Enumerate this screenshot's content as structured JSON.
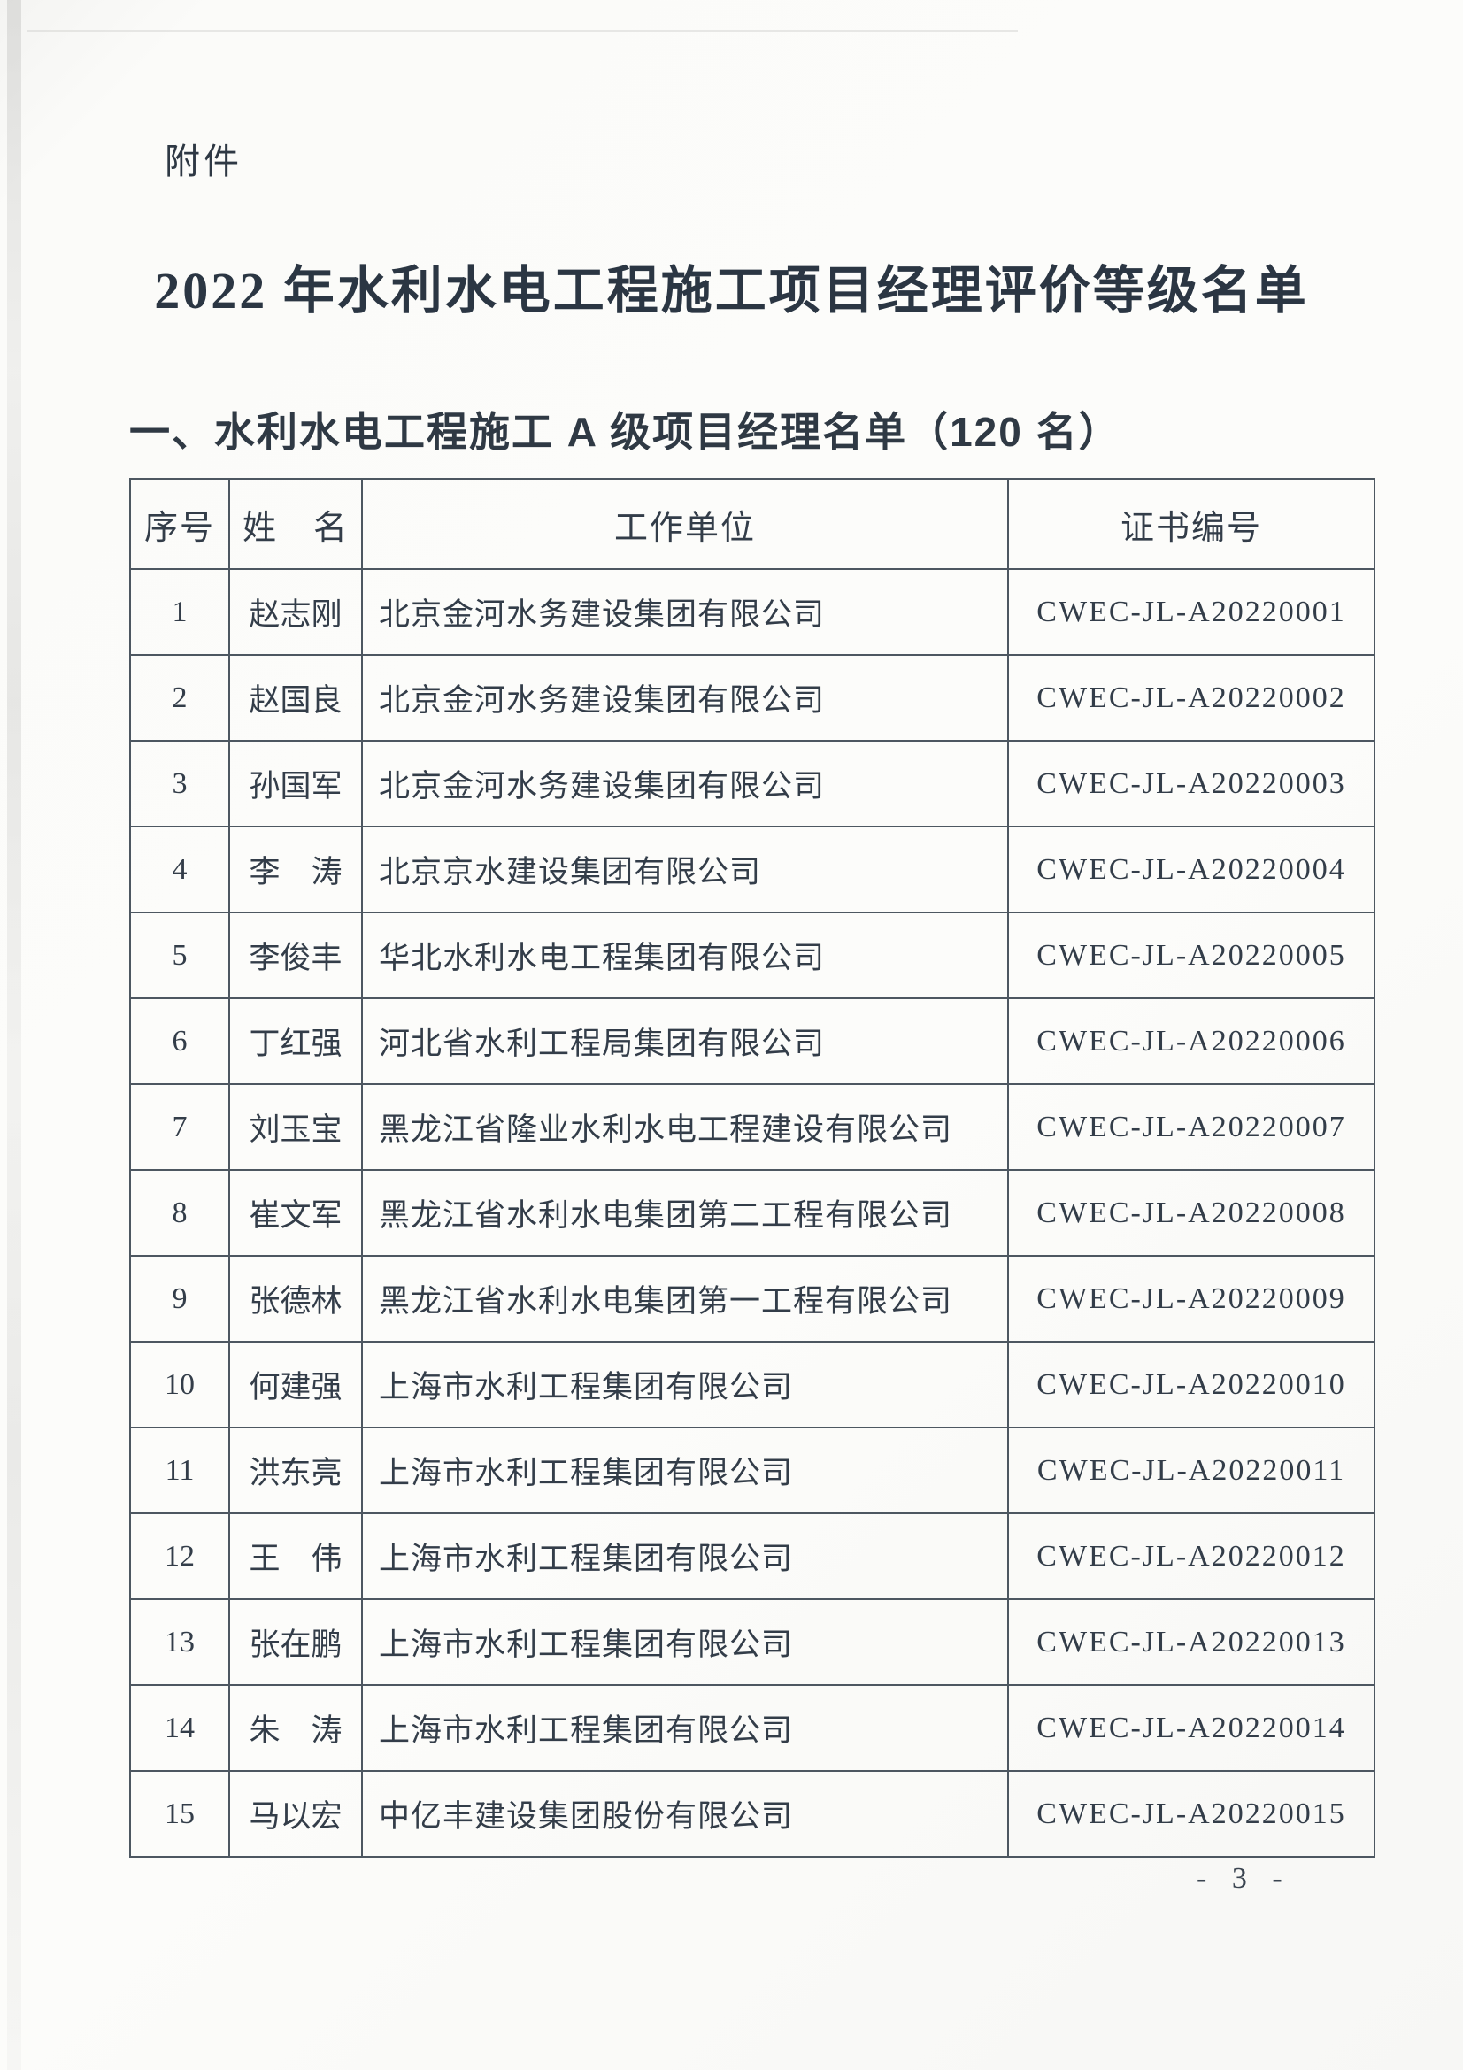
{
  "attachment_label": "附件",
  "title": "2022 年水利水电工程施工项目经理评价等级名单",
  "section_heading": "一、水利水电工程施工 A 级项目经理名单（120 名）",
  "table": {
    "headers": [
      "序号",
      "姓　名",
      "工作单位",
      "证书编号"
    ],
    "rows": [
      {
        "no": "1",
        "name": "赵志刚",
        "unit": "北京金河水务建设集团有限公司",
        "cert": "CWEC-JL-A20220001"
      },
      {
        "no": "2",
        "name": "赵国良",
        "unit": "北京金河水务建设集团有限公司",
        "cert": "CWEC-JL-A20220002"
      },
      {
        "no": "3",
        "name": "孙国军",
        "unit": "北京金河水务建设集团有限公司",
        "cert": "CWEC-JL-A20220003"
      },
      {
        "no": "4",
        "name": "李　涛",
        "unit": "北京京水建设集团有限公司",
        "cert": "CWEC-JL-A20220004"
      },
      {
        "no": "5",
        "name": "李俊丰",
        "unit": "华北水利水电工程集团有限公司",
        "cert": "CWEC-JL-A20220005"
      },
      {
        "no": "6",
        "name": "丁红强",
        "unit": "河北省水利工程局集团有限公司",
        "cert": "CWEC-JL-A20220006"
      },
      {
        "no": "7",
        "name": "刘玉宝",
        "unit": "黑龙江省隆业水利水电工程建设有限公司",
        "cert": "CWEC-JL-A20220007"
      },
      {
        "no": "8",
        "name": "崔文军",
        "unit": "黑龙江省水利水电集团第二工程有限公司",
        "cert": "CWEC-JL-A20220008"
      },
      {
        "no": "9",
        "name": "张德林",
        "unit": "黑龙江省水利水电集团第一工程有限公司",
        "cert": "CWEC-JL-A20220009"
      },
      {
        "no": "10",
        "name": "何建强",
        "unit": "上海市水利工程集团有限公司",
        "cert": "CWEC-JL-A20220010"
      },
      {
        "no": "11",
        "name": "洪东亮",
        "unit": "上海市水利工程集团有限公司",
        "cert": "CWEC-JL-A20220011"
      },
      {
        "no": "12",
        "name": "王　伟",
        "unit": "上海市水利工程集团有限公司",
        "cert": "CWEC-JL-A20220012"
      },
      {
        "no": "13",
        "name": "张在鹏",
        "unit": "上海市水利工程集团有限公司",
        "cert": "CWEC-JL-A20220013"
      },
      {
        "no": "14",
        "name": "朱　涛",
        "unit": "上海市水利工程集团有限公司",
        "cert": "CWEC-JL-A20220014"
      },
      {
        "no": "15",
        "name": "马以宏",
        "unit": "中亿丰建设集团股份有限公司",
        "cert": "CWEC-JL-A20220015"
      }
    ]
  },
  "page_number": "- 3 -",
  "colors": {
    "ink": "#333d49",
    "title_ink": "#2b3643",
    "table_border": "#4d5761",
    "paper": "#fbfbf9"
  }
}
